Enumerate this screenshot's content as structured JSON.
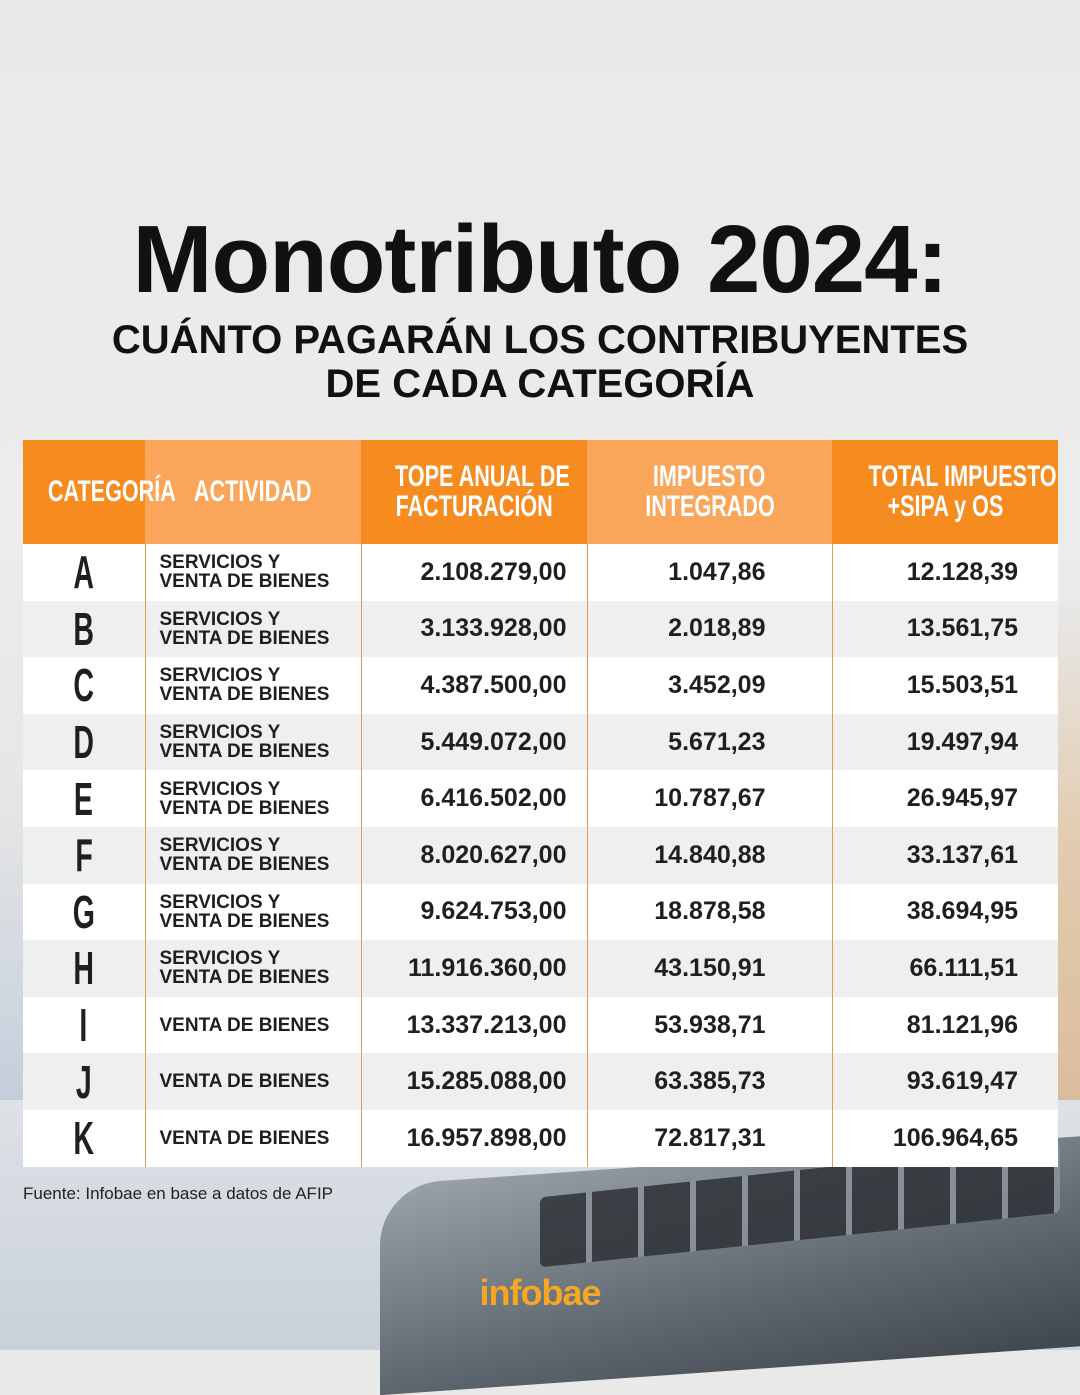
{
  "title": "Monotributo 2024:",
  "subtitle_line1": "CUÁNTO PAGARÁN LOS CONTRIBUYENTES",
  "subtitle_line2": "DE CADA CATEGORÍA",
  "colors": {
    "header_orange": "#f68b1f",
    "header_light_orange": "#f9a55a",
    "logo": "#f5a623"
  },
  "chart_data": {
    "type": "table",
    "columns": [
      "CATEGORÍA",
      "ACTIVIDAD",
      "TOPE ANUAL DE FACTURACIÓN",
      "IMPUESTO INTEGRADO",
      "TOTAL IMPUESTO +SIPA y OS"
    ],
    "rows": [
      [
        "A",
        [
          "SERVICIOS Y",
          "VENTA DE BIENES"
        ],
        "2.108.279,00",
        "1.047,86",
        "12.128,39"
      ],
      [
        "B",
        [
          "SERVICIOS Y",
          "VENTA DE BIENES"
        ],
        "3.133.928,00",
        "2.018,89",
        "13.561,75"
      ],
      [
        "C",
        [
          "SERVICIOS Y",
          "VENTA DE BIENES"
        ],
        "4.387.500,00",
        "3.452,09",
        "15.503,51"
      ],
      [
        "D",
        [
          "SERVICIOS Y",
          "VENTA DE BIENES"
        ],
        "5.449.072,00",
        "5.671,23",
        "19.497,94"
      ],
      [
        "E",
        [
          "SERVICIOS Y",
          "VENTA DE BIENES"
        ],
        "6.416.502,00",
        "10.787,67",
        "26.945,97"
      ],
      [
        "F",
        [
          "SERVICIOS Y",
          "VENTA DE BIENES"
        ],
        "8.020.627,00",
        "14.840,88",
        "33.137,61"
      ],
      [
        "G",
        [
          "SERVICIOS Y",
          "VENTA DE BIENES"
        ],
        "9.624.753,00",
        "18.878,58",
        "38.694,95"
      ],
      [
        "H",
        [
          "SERVICIOS Y",
          "VENTA DE BIENES"
        ],
        "11.916.360,00",
        "43.150,91",
        "66.111,51"
      ],
      [
        "I",
        [
          "VENTA DE BIENES"
        ],
        "13.337.213,00",
        "53.938,71",
        "81.121,96"
      ],
      [
        "J",
        [
          "VENTA DE BIENES"
        ],
        "15.285.088,00",
        "63.385,73",
        "93.619,47"
      ],
      [
        "K",
        [
          "VENTA DE BIENES"
        ],
        "16.957.898,00",
        "72.817,31",
        "106.964,65"
      ]
    ]
  },
  "header_lines": [
    [
      "CATEGORÍA"
    ],
    [
      "ACTIVIDAD"
    ],
    [
      "TOPE ANUAL DE",
      "FACTURACIÓN"
    ],
    [
      "IMPUESTO",
      "INTEGRADO"
    ],
    [
      "TOTAL IMPUESTO",
      "+SIPA y OS"
    ]
  ],
  "source": "Fuente: Infobae en base a datos de AFIP",
  "logo": "infobae"
}
